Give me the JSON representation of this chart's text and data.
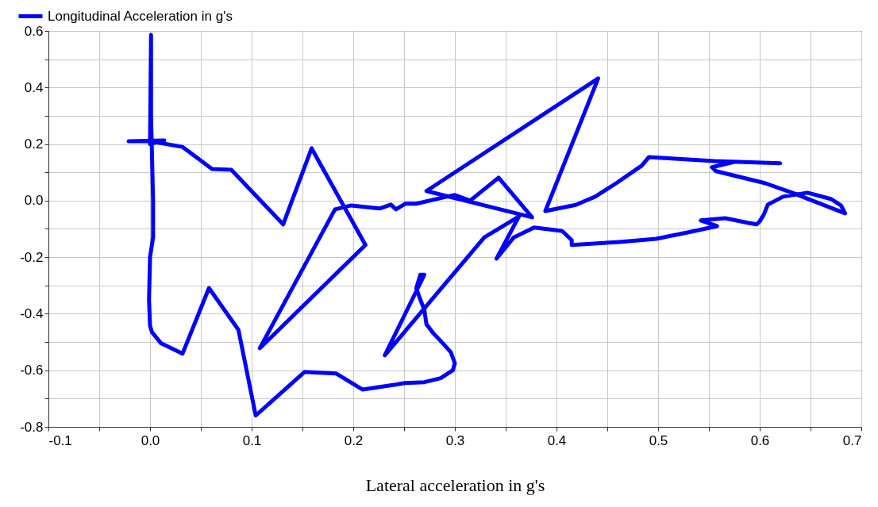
{
  "chart_data": {
    "type": "line",
    "xlabel": "Lateral acceleration in g's",
    "x": [
      0.62,
      0.555,
      0.491,
      0.484,
      0.459,
      0.438,
      0.419,
      0.389,
      0.441,
      0.272,
      0.376,
      0.343,
      0.315,
      0.3,
      0.292,
      0.262,
      0.251,
      0.242,
      0.237,
      0.226,
      0.198,
      0.182,
      0.108,
      0.212,
      0.159,
      0.131,
      0.08,
      0.061,
      0.032,
      0.0,
      -0.021,
      0.014,
      0.0,
      0.001,
      0.001,
      0.003,
      0.003,
      0.0,
      -0.001,
      0.0,
      0.002,
      0.011,
      0.032,
      0.058,
      0.087,
      0.104,
      0.152,
      0.183,
      0.209,
      0.243,
      0.251,
      0.27,
      0.286,
      0.298,
      0.3,
      0.296,
      0.287,
      0.279,
      0.272,
      0.27,
      0.265,
      0.262,
      0.266,
      0.27,
      0.231,
      0.329,
      0.363,
      0.341,
      0.358,
      0.378,
      0.405,
      0.407,
      0.415,
      0.415,
      0.462,
      0.498,
      0.53,
      0.558,
      0.542,
      0.566,
      0.589,
      0.597,
      0.6,
      0.604,
      0.608,
      0.623,
      0.647,
      0.67,
      0.68,
      0.684,
      0.634,
      0.605,
      0.557,
      0.553,
      0.575
    ],
    "series": [
      {
        "name": "Longitudinal Acceleration in g's",
        "color": "#0000ff",
        "values": [
          0.132,
          0.14,
          0.154,
          0.124,
          0.062,
          0.014,
          -0.015,
          -0.037,
          0.432,
          0.034,
          -0.059,
          0.081,
          0.0,
          0.02,
          0.014,
          -0.011,
          -0.011,
          -0.031,
          -0.014,
          -0.028,
          -0.017,
          -0.031,
          -0.522,
          -0.157,
          0.185,
          -0.084,
          0.109,
          0.112,
          0.19,
          0.21,
          0.21,
          0.213,
          0.2,
          0.586,
          0.3,
          0.0,
          -0.13,
          -0.2,
          -0.35,
          -0.443,
          -0.466,
          -0.505,
          -0.541,
          -0.309,
          -0.457,
          -0.76,
          -0.606,
          -0.611,
          -0.668,
          -0.65,
          -0.645,
          -0.642,
          -0.628,
          -0.6,
          -0.575,
          -0.536,
          -0.5,
          -0.47,
          -0.437,
          -0.387,
          -0.34,
          -0.31,
          -0.262,
          -0.262,
          -0.547,
          -0.13,
          -0.056,
          -0.205,
          -0.13,
          -0.095,
          -0.107,
          -0.112,
          -0.14,
          -0.157,
          -0.146,
          -0.135,
          -0.112,
          -0.09,
          -0.07,
          -0.062,
          -0.079,
          -0.084,
          -0.073,
          -0.05,
          -0.014,
          0.014,
          0.028,
          0.006,
          -0.017,
          -0.045,
          0.025,
          0.062,
          0.104,
          0.118,
          0.137
        ]
      }
    ],
    "xlim": [
      -0.1,
      0.7
    ],
    "ylim": [
      -0.8,
      0.6
    ],
    "xticks": [
      {
        "value": -0.1,
        "label": "-0.1"
      },
      {
        "value": -0.05,
        "label": null
      },
      {
        "value": 0,
        "label": "0.0"
      },
      {
        "value": 0.05,
        "label": null
      },
      {
        "value": 0.1,
        "label": "0.1"
      },
      {
        "value": 0.15,
        "label": null
      },
      {
        "value": 0.2,
        "label": "0.2"
      },
      {
        "value": 0.25,
        "label": null
      },
      {
        "value": 0.3,
        "label": "0.3"
      },
      {
        "value": 0.35,
        "label": null
      },
      {
        "value": 0.4,
        "label": "0.4"
      },
      {
        "value": 0.45,
        "label": null
      },
      {
        "value": 0.5,
        "label": "0.5"
      },
      {
        "value": 0.55,
        "label": null
      },
      {
        "value": 0.6,
        "label": "0.6"
      },
      {
        "value": 0.65,
        "label": null
      },
      {
        "value": 0.7,
        "label": "0.7"
      }
    ],
    "yticks": [
      {
        "value": -0.8,
        "label": "-0.8"
      },
      {
        "value": -0.7,
        "label": null
      },
      {
        "value": -0.6,
        "label": "-0.6"
      },
      {
        "value": -0.5,
        "label": null
      },
      {
        "value": -0.4,
        "label": "-0.4"
      },
      {
        "value": -0.3,
        "label": null
      },
      {
        "value": -0.2,
        "label": "-0.2"
      },
      {
        "value": -0.1,
        "label": null
      },
      {
        "value": 0,
        "label": "0.0"
      },
      {
        "value": 0.1,
        "label": null
      },
      {
        "value": 0.2,
        "label": "0.2"
      },
      {
        "value": 0.3,
        "label": null
      },
      {
        "value": 0.4,
        "label": "0.4"
      },
      {
        "value": 0.5,
        "label": null
      },
      {
        "value": 0.6,
        "label": "0.6"
      }
    ],
    "grid": true,
    "legend": "top left",
    "marker": "none",
    "line_style": "solid"
  }
}
